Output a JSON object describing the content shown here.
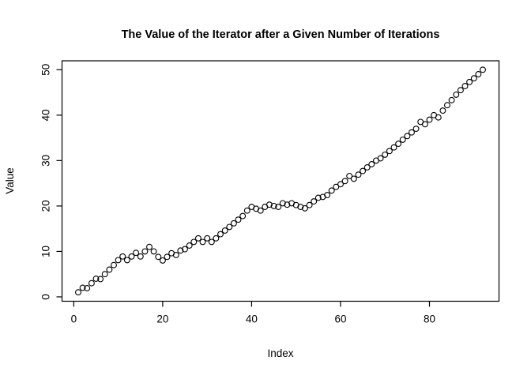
{
  "chart_data": {
    "type": "scatter",
    "title": "The Value of the Iterator after a Given Number of Iterations",
    "xlabel": "Index",
    "ylabel": "Value",
    "point_style": "open-circle",
    "point_color": "#000000",
    "background": "#ffffff",
    "grid": false,
    "legend": "none",
    "xticks": [
      0,
      20,
      40,
      60,
      80
    ],
    "yticks": [
      0,
      10,
      20,
      30,
      40,
      50
    ],
    "xlim": [
      -2.64,
      95.64
    ],
    "ylim": [
      -0.96,
      51.96
    ],
    "x": [
      1,
      2,
      3,
      4,
      5,
      6,
      7,
      8,
      9,
      10,
      11,
      12,
      13,
      14,
      15,
      16,
      17,
      18,
      19,
      20,
      21,
      22,
      23,
      24,
      25,
      26,
      27,
      28,
      29,
      30,
      31,
      32,
      33,
      34,
      35,
      36,
      37,
      38,
      39,
      40,
      41,
      42,
      43,
      44,
      45,
      46,
      47,
      48,
      49,
      50,
      51,
      52,
      53,
      54,
      55,
      56,
      57,
      58,
      59,
      60,
      61,
      62,
      63,
      64,
      65,
      66,
      67,
      68,
      69,
      70,
      71,
      72,
      73,
      74,
      75,
      76,
      77,
      78,
      79,
      80,
      81,
      82,
      83,
      84,
      85,
      86,
      87,
      88,
      89,
      90,
      91,
      92
    ],
    "y": [
      1.0,
      2.0,
      1.9,
      3.0,
      4.0,
      3.9,
      5.0,
      6.0,
      7.0,
      8.1,
      8.9,
      8.1,
      8.9,
      9.7,
      8.9,
      10.0,
      11.0,
      10.0,
      8.8,
      8.0,
      8.8,
      9.6,
      9.2,
      10.2,
      10.5,
      11.3,
      12.1,
      12.9,
      12.1,
      12.9,
      12.1,
      12.9,
      13.8,
      14.6,
      15.4,
      16.2,
      17.0,
      17.8,
      19.0,
      19.8,
      19.4,
      19.0,
      19.8,
      20.3,
      20.0,
      19.8,
      20.6,
      20.3,
      20.6,
      20.2,
      19.8,
      19.5,
      20.2,
      21.0,
      21.8,
      22.0,
      22.4,
      23.4,
      24.2,
      24.8,
      25.5,
      26.6,
      26.0,
      26.9,
      27.7,
      28.5,
      29.2,
      30.0,
      30.5,
      31.3,
      32.1,
      32.9,
      33.7,
      34.6,
      35.4,
      36.2,
      37.0,
      38.5,
      38.0,
      39.0,
      40.0,
      39.5,
      41.0,
      42.2,
      43.3,
      44.5,
      45.5,
      46.4,
      47.3,
      48.1,
      49.0,
      50.0
    ]
  }
}
